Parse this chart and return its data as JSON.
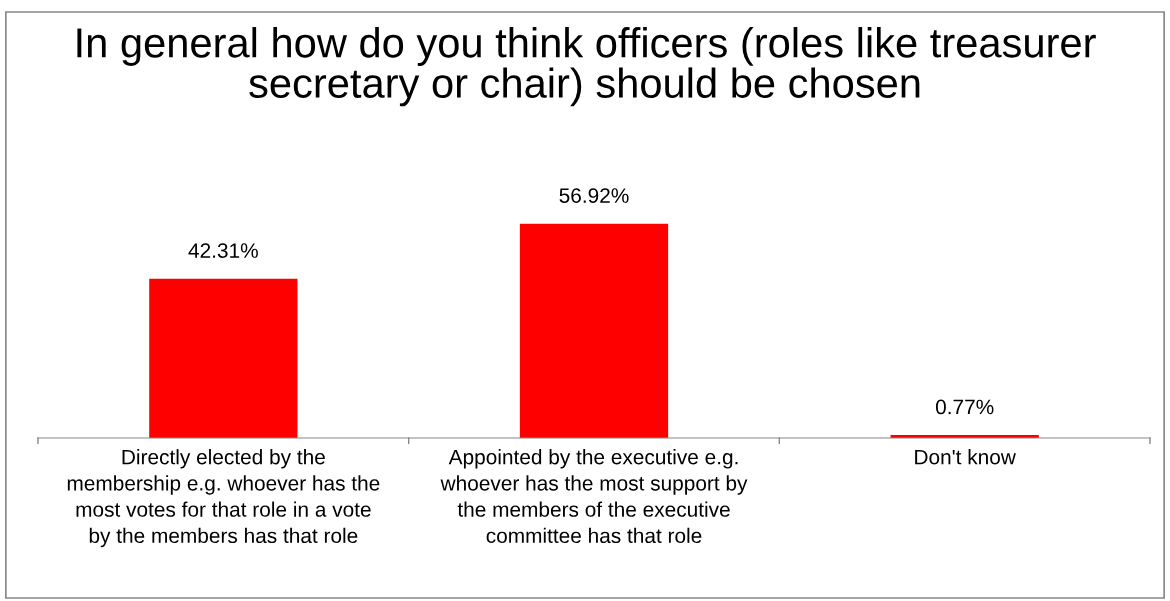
{
  "chart_data": {
    "type": "bar",
    "title": "In general how do you think officers (roles like treasurer secretary or chair) should be chosen",
    "categories": [
      "Directly elected by the\nmembership e.g. whoever has the\nmost votes for that role in a vote\nby the members has that role",
      "Appointed by the executive e.g.\nwhoever has the most support by\nthe members of the executive\ncommittee has that role",
      "Don't know"
    ],
    "values": [
      42.31,
      56.92,
      0.77
    ],
    "value_labels": [
      "42.31%",
      "56.92%",
      "0.77%"
    ],
    "color": "#ff0000",
    "grid": false,
    "legend": false
  }
}
